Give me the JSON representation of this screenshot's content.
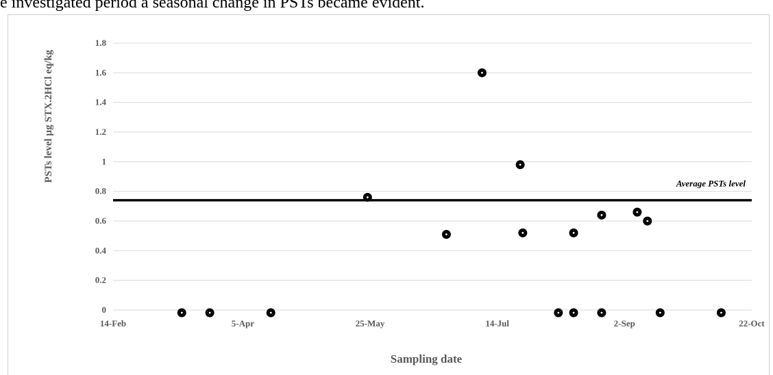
{
  "top_text": "e investigated period a seasonal change in PSTs        became evident.",
  "chart_data": {
    "type": "scatter",
    "xlabel": "Sampling date",
    "ylabel": "PSTs level µg STX.2HCl eq/kg",
    "x_ticks": [
      "14-Feb",
      "5-Apr",
      "25-May",
      "14-Jul",
      "2-Sep",
      "22-Oct"
    ],
    "y_ticks": [
      "0",
      "0.2",
      "0.4",
      "0.6",
      "0.8",
      "1",
      "1.2",
      "1.4",
      "1.6",
      "1.8"
    ],
    "ylim": [
      0,
      1.8
    ],
    "grid": true,
    "average_line": {
      "label": "Average PSTs level",
      "value": 0.74
    },
    "points": [
      {
        "x": "12-Mar",
        "y": 0
      },
      {
        "x": "23-Mar",
        "y": 0
      },
      {
        "x": "16-Apr",
        "y": 0
      },
      {
        "x": "24-May",
        "y": 0.76
      },
      {
        "x": "24-Jun",
        "y": 0.51
      },
      {
        "x": "8-Jul",
        "y": 1.6
      },
      {
        "x": "23-Jul",
        "y": 0.98
      },
      {
        "x": "24-Jul",
        "y": 0.52
      },
      {
        "x": "7-Aug",
        "y": 0
      },
      {
        "x": "13-Aug",
        "y": 0
      },
      {
        "x": "13-Aug",
        "y": 0.52
      },
      {
        "x": "24-Aug",
        "y": 0
      },
      {
        "x": "24-Aug",
        "y": 0.64
      },
      {
        "x": "7-Sep",
        "y": 0.66
      },
      {
        "x": "11-Sep",
        "y": 0.6
      },
      {
        "x": "16-Sep",
        "y": 0
      },
      {
        "x": "10-Oct",
        "y": 0
      }
    ]
  }
}
